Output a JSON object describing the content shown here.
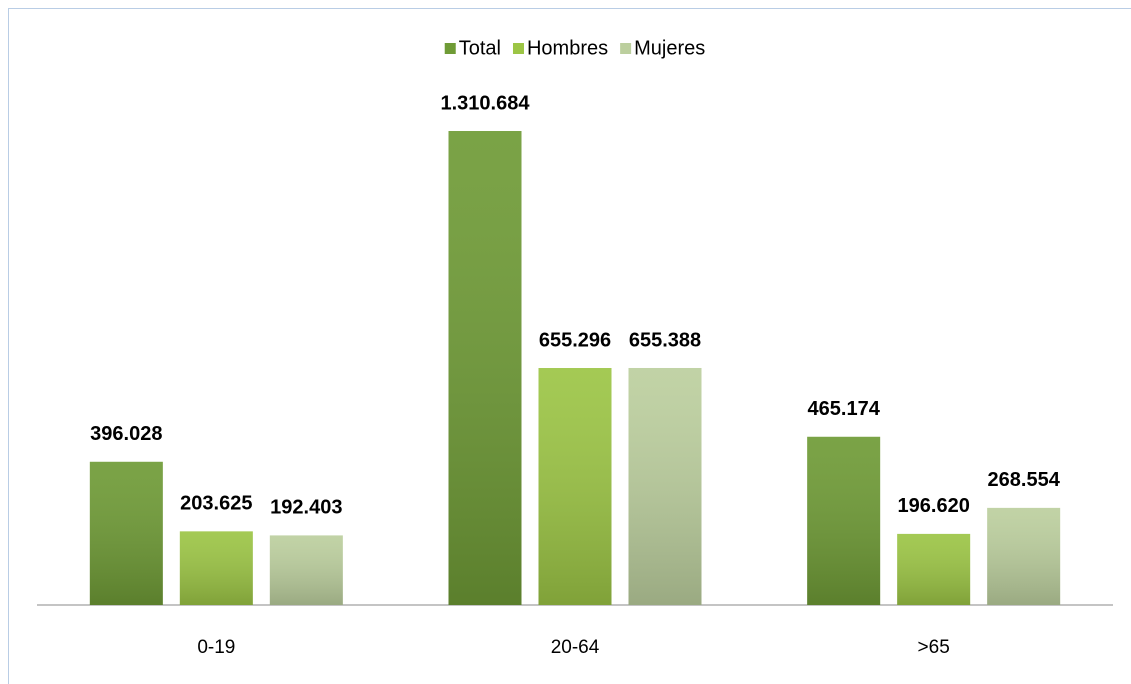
{
  "chart_data": {
    "type": "bar",
    "categories": [
      "0-19",
      "20-64",
      ">65"
    ],
    "series": [
      {
        "name": "Total",
        "color": "#6f9b36",
        "values": [
          396028,
          1310684,
          465174
        ],
        "value_labels": [
          "396.028",
          "1.310.684",
          "465.174"
        ]
      },
      {
        "name": "Hombres",
        "color": "#9cc545",
        "values": [
          203625,
          655296,
          196620
        ],
        "value_labels": [
          "203.625",
          "655.296",
          "196.620"
        ]
      },
      {
        "name": "Mujeres",
        "color": "#bccf9e",
        "values": [
          192403,
          655388,
          268554
        ],
        "value_labels": [
          "192.403",
          "655.388",
          "268.554"
        ]
      }
    ],
    "legend": "top"
  }
}
